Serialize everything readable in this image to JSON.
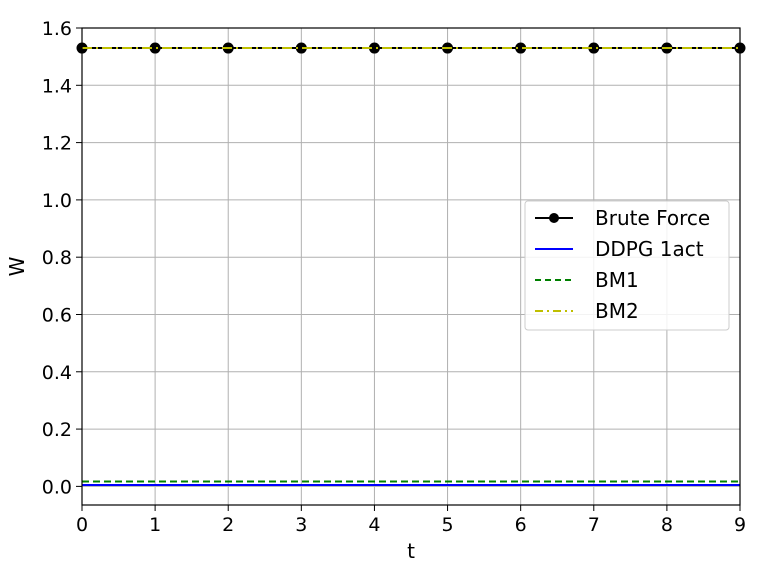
{
  "chart_data": {
    "type": "line",
    "xlabel": "t",
    "ylabel": "W",
    "xlim": [
      0,
      9
    ],
    "ylim": [
      -0.065,
      1.6
    ],
    "xticks": [
      0,
      1,
      2,
      3,
      4,
      5,
      6,
      7,
      8,
      9
    ],
    "yticks": [
      0.0,
      0.2,
      0.4,
      0.6,
      0.8,
      1.0,
      1.2,
      1.4,
      1.6
    ],
    "ytick_labels": [
      "0.0",
      "0.2",
      "0.4",
      "0.6",
      "0.8",
      "1.0",
      "1.2",
      "1.4",
      "1.6"
    ],
    "grid": true,
    "legend_position": "center-right",
    "x": [
      0,
      1,
      2,
      3,
      4,
      5,
      6,
      7,
      8,
      9
    ],
    "series": [
      {
        "name": "Brute Force",
        "values": [
          1.53,
          1.53,
          1.53,
          1.53,
          1.53,
          1.53,
          1.53,
          1.53,
          1.53,
          1.53
        ],
        "color": "#000000",
        "style": "solid",
        "marker": "circle"
      },
      {
        "name": "DDPG 1act",
        "values": [
          0.005,
          0.005,
          0.005,
          0.005,
          0.005,
          0.005,
          0.005,
          0.005,
          0.005,
          0.005
        ],
        "color": "#0000ff",
        "style": "solid",
        "marker": "none"
      },
      {
        "name": "BM1",
        "values": [
          0.017,
          0.017,
          0.017,
          0.017,
          0.017,
          0.017,
          0.017,
          0.017,
          0.017,
          0.017
        ],
        "color": "#008000",
        "style": "dashed",
        "marker": "none"
      },
      {
        "name": "BM2",
        "values": [
          1.53,
          1.53,
          1.53,
          1.53,
          1.53,
          1.53,
          1.53,
          1.53,
          1.53,
          1.53
        ],
        "color": "#bfbf00",
        "style": "dashdot",
        "marker": "none"
      }
    ]
  }
}
